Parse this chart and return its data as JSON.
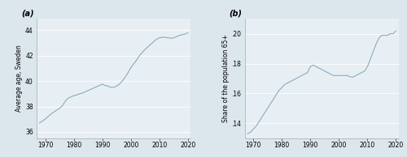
{
  "panel_a": {
    "label": "(a)",
    "ylabel": "Average age, Sweden",
    "years": [
      1968,
      1969,
      1970,
      1971,
      1972,
      1973,
      1974,
      1975,
      1976,
      1977,
      1978,
      1979,
      1980,
      1981,
      1982,
      1983,
      1984,
      1985,
      1986,
      1987,
      1988,
      1989,
      1990,
      1991,
      1992,
      1993,
      1994,
      1995,
      1996,
      1997,
      1998,
      1999,
      2000,
      2001,
      2002,
      2003,
      2004,
      2005,
      2006,
      2007,
      2008,
      2009,
      2010,
      2011,
      2012,
      2013,
      2014,
      2015,
      2016,
      2017,
      2018,
      2019,
      2020
    ],
    "values": [
      36.7,
      36.85,
      37.0,
      37.2,
      37.4,
      37.55,
      37.7,
      37.85,
      38.05,
      38.4,
      38.65,
      38.75,
      38.85,
      38.9,
      39.0,
      39.05,
      39.15,
      39.25,
      39.35,
      39.45,
      39.55,
      39.65,
      39.75,
      39.65,
      39.6,
      39.5,
      39.5,
      39.6,
      39.75,
      40.0,
      40.3,
      40.65,
      41.05,
      41.35,
      41.65,
      42.0,
      42.25,
      42.5,
      42.7,
      42.9,
      43.1,
      43.3,
      43.4,
      43.45,
      43.45,
      43.4,
      43.38,
      43.4,
      43.5,
      43.6,
      43.65,
      43.7,
      43.8
    ],
    "yticks": [
      36,
      38,
      40,
      42,
      44
    ],
    "ytick_labels": [
      "36",
      "38",
      "40",
      "42",
      "44"
    ],
    "ylim": [
      35.5,
      44.9
    ],
    "xticks": [
      1970,
      1980,
      1990,
      2000,
      2010,
      2020
    ],
    "xlim": [
      1967,
      2021
    ]
  },
  "panel_b": {
    "label": "(b)",
    "ylabel": "Share of the population 65+",
    "years": [
      1968,
      1969,
      1970,
      1971,
      1972,
      1973,
      1974,
      1975,
      1976,
      1977,
      1978,
      1979,
      1980,
      1981,
      1982,
      1983,
      1984,
      1985,
      1986,
      1987,
      1988,
      1989,
      1990,
      1991,
      1992,
      1993,
      1994,
      1995,
      1996,
      1997,
      1998,
      1999,
      2000,
      2001,
      2002,
      2003,
      2004,
      2005,
      2006,
      2007,
      2008,
      2009,
      2010,
      2011,
      2012,
      2013,
      2014,
      2015,
      2016,
      2017,
      2018,
      2019,
      2020
    ],
    "values": [
      0.133,
      0.134,
      0.136,
      0.138,
      0.141,
      0.144,
      0.147,
      0.15,
      0.153,
      0.156,
      0.159,
      0.162,
      0.164,
      0.166,
      0.167,
      0.168,
      0.169,
      0.17,
      0.171,
      0.172,
      0.173,
      0.174,
      0.178,
      0.179,
      0.178,
      0.177,
      0.176,
      0.175,
      0.174,
      0.173,
      0.172,
      0.172,
      0.172,
      0.172,
      0.172,
      0.172,
      0.171,
      0.171,
      0.172,
      0.173,
      0.174,
      0.175,
      0.178,
      0.183,
      0.188,
      0.193,
      0.197,
      0.199,
      0.199,
      0.199,
      0.2,
      0.2,
      0.202
    ],
    "yticks": [
      0.14,
      0.16,
      0.18,
      0.2
    ],
    "ytick_labels": [
      ".14",
      ".16",
      ".18",
      ".20"
    ],
    "ylim": [
      0.13,
      0.21
    ],
    "xticks": [
      1970,
      1980,
      1990,
      2000,
      2010,
      2020
    ],
    "xlim": [
      1967,
      2021
    ]
  },
  "line_color": "#8aabbc",
  "bg_color": "#dce6ed",
  "plot_bg": "#e8eff4",
  "grid_color": "#ffffff",
  "label_fontsize": 5.5,
  "tick_fontsize": 5.5,
  "panel_label_fontsize": 7.0,
  "line_width": 0.8
}
